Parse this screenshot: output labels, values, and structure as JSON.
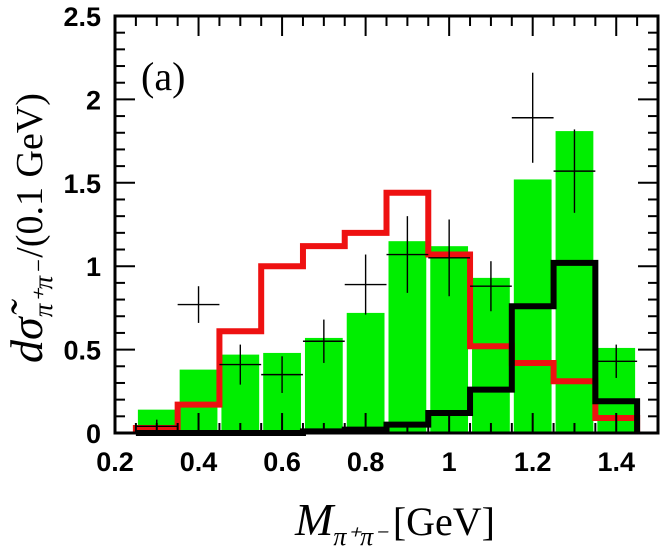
{
  "chart_data": {
    "type": "bar",
    "panel_label": "(a)",
    "x_axis": {
      "title_symbol": "M",
      "title_subscript": "π⁺π⁻",
      "title_unit": "[GeV]",
      "range": [
        0.2,
        1.5
      ],
      "ticks": [
        0.2,
        0.4,
        0.6,
        0.8,
        1.0,
        1.2,
        1.4
      ],
      "tick_labels": [
        "0.2",
        "0.4",
        "0.6",
        "0.8",
        "1",
        "1.2",
        "1.4"
      ]
    },
    "y_axis": {
      "title_main": "dσ̃",
      "title_subscript": "π⁺π⁻",
      "title_unit": "/(0.1 GeV)",
      "range": [
        0,
        2.5
      ],
      "ticks": [
        0,
        0.5,
        1.0,
        1.5,
        2.0,
        2.5
      ],
      "tick_labels": [
        "0",
        "0.5",
        "1",
        "1.5",
        "2",
        "2.5"
      ]
    },
    "bin_edges": [
      0.25,
      0.35,
      0.45,
      0.55,
      0.65,
      0.75,
      0.85,
      0.95,
      1.05,
      1.15,
      1.25,
      1.35,
      1.45
    ],
    "series": [
      {
        "name": "green histogram (bars)",
        "style": "filled-bars",
        "color": "#00ee00",
        "values": [
          0.14,
          0.38,
          0.47,
          0.48,
          0.57,
          0.72,
          1.15,
          1.12,
          0.93,
          1.52,
          1.81,
          0.51
        ]
      },
      {
        "name": "red histogram",
        "style": "step-line",
        "color": "#ee1111",
        "values": [
          0.03,
          0.17,
          0.61,
          1.0,
          1.12,
          1.2,
          1.44,
          1.07,
          0.52,
          0.42,
          0.31,
          0.09
        ]
      },
      {
        "name": "black histogram",
        "style": "step-line",
        "color": "#000000",
        "values": [
          0.0,
          0.0,
          0.0,
          0.0,
          0.01,
          0.02,
          0.05,
          0.12,
          0.26,
          0.76,
          1.02,
          0.19
        ]
      },
      {
        "name": "data points",
        "style": "error-crosses",
        "color": "#000000",
        "points": [
          {
            "x": 0.3,
            "y": 0.04,
            "err": 0.04
          },
          {
            "x": 0.4,
            "y": 0.77,
            "err": 0.0
          },
          {
            "x": 0.5,
            "y": 0.41,
            "err": 0.12
          },
          {
            "x": 0.6,
            "y": 0.35,
            "err": 0.11
          },
          {
            "x": 0.7,
            "y": 0.55,
            "err": 0.13
          },
          {
            "x": 0.8,
            "y": 0.89,
            "err": 0.18
          },
          {
            "x": 0.9,
            "y": 1.07,
            "err": 0.23
          },
          {
            "x": 1.0,
            "y": 1.05,
            "err": 0.23
          },
          {
            "x": 1.1,
            "y": 0.88,
            "err": 0.15
          },
          {
            "x": 1.2,
            "y": 1.89,
            "err": 0.27
          },
          {
            "x": 1.3,
            "y": 1.57,
            "err": 0.25
          },
          {
            "x": 1.4,
            "y": 0.43,
            "err": 0.1
          }
        ]
      }
    ]
  }
}
